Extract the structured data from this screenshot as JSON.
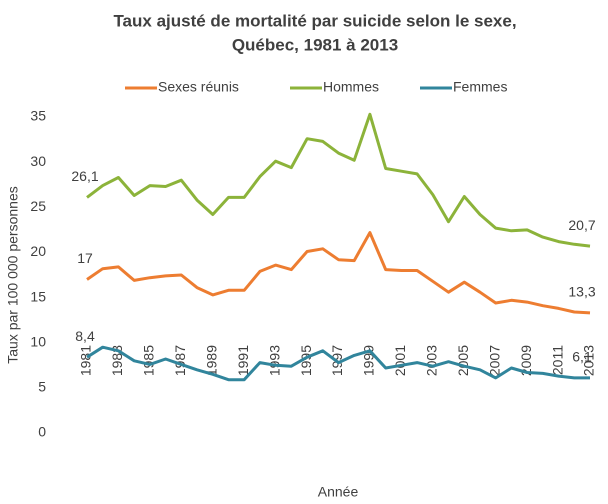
{
  "chart_data": {
    "type": "line",
    "title": [
      "Taux ajusté de mortalité par suicide selon le sexe,",
      "Québec, 1981 à 2013"
    ],
    "x_label": "Année",
    "y_label": "Taux par 100 000 personnes",
    "categories": [
      "1981",
      null,
      "1983",
      null,
      "1985",
      null,
      "1987",
      null,
      "1989",
      null,
      "1991",
      null,
      "1993",
      null,
      "1995",
      null,
      "1997",
      null,
      "1999",
      null,
      "2001",
      null,
      "2003",
      null,
      "2005",
      null,
      "2007",
      null,
      "2009",
      null,
      "2011",
      null,
      "2013"
    ],
    "ylim": [
      0,
      35
    ],
    "yticks": [
      0,
      5,
      10,
      15,
      20,
      25,
      30,
      35
    ],
    "grid": false,
    "legend": "top",
    "series": [
      {
        "name": "Sexes réunis",
        "color": "#ED7D31",
        "values": [
          17.0,
          18.2,
          18.4,
          16.9,
          17.2,
          17.4,
          17.5,
          16.1,
          15.3,
          15.8,
          15.8,
          17.9,
          18.6,
          18.1,
          20.1,
          20.4,
          19.2,
          19.1,
          22.2,
          18.1,
          18.0,
          18.0,
          16.8,
          15.6,
          16.7,
          15.6,
          14.4,
          14.7,
          14.5,
          14.1,
          13.8,
          13.4,
          13.3
        ],
        "value_labels": [
          "17",
          null,
          null,
          null,
          null,
          null,
          null,
          null,
          null,
          null,
          null,
          null,
          null,
          null,
          null,
          null,
          null,
          null,
          null,
          null,
          null,
          null,
          null,
          null,
          null,
          null,
          null,
          null,
          null,
          null,
          null,
          null,
          "13,3"
        ]
      },
      {
        "name": "Hommes",
        "color": "#8CB33A",
        "values": [
          26.1,
          27.4,
          28.3,
          26.3,
          27.4,
          27.3,
          28.0,
          25.8,
          24.2,
          26.1,
          26.1,
          28.4,
          30.1,
          29.4,
          32.6,
          32.3,
          31.0,
          30.2,
          35.3,
          29.3,
          29.0,
          28.7,
          26.4,
          23.4,
          26.2,
          24.2,
          22.7,
          22.4,
          22.5,
          21.7,
          21.2,
          20.9,
          20.7
        ],
        "value_labels": [
          "26,1",
          null,
          null,
          null,
          null,
          null,
          null,
          null,
          null,
          null,
          null,
          null,
          null,
          null,
          null,
          null,
          null,
          null,
          null,
          null,
          null,
          null,
          null,
          null,
          null,
          null,
          null,
          null,
          null,
          null,
          null,
          null,
          "20,7"
        ]
      },
      {
        "name": "Femmes",
        "color": "#31859C",
        "values": [
          8.4,
          9.5,
          9.1,
          8.0,
          7.6,
          8.2,
          7.6,
          7.0,
          6.5,
          5.9,
          5.9,
          7.8,
          7.5,
          7.4,
          8.4,
          9.1,
          7.8,
          8.6,
          9.1,
          7.2,
          7.5,
          7.8,
          7.4,
          7.9,
          7.4,
          7.0,
          6.1,
          7.2,
          6.7,
          6.6,
          6.3,
          6.1,
          6.1
        ],
        "value_labels": [
          "8,4",
          null,
          null,
          null,
          null,
          null,
          null,
          null,
          null,
          null,
          null,
          null,
          null,
          null,
          null,
          null,
          null,
          null,
          null,
          null,
          null,
          null,
          null,
          null,
          null,
          null,
          null,
          null,
          null,
          null,
          null,
          null,
          "6,1"
        ]
      }
    ]
  }
}
